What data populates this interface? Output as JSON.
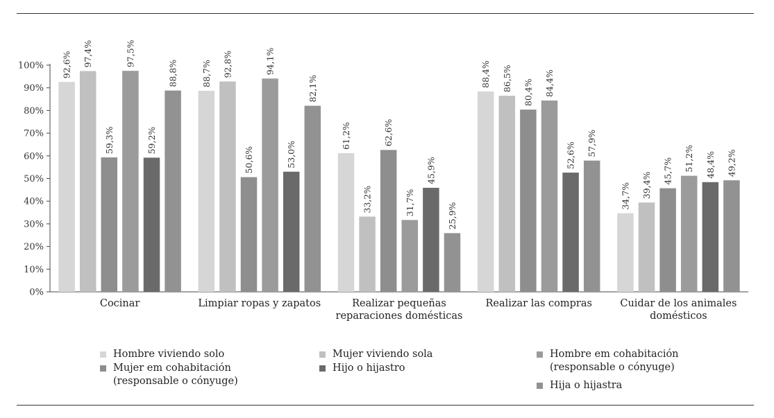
{
  "chart_data": {
    "type": "bar",
    "categories": [
      "Cocinar",
      "Limpiar ropas y zapatos",
      "Realizar pequeñas\nreparaciones domésticas",
      "Realizar las compras",
      "Cuidar de los animales\ndomésticos"
    ],
    "series": [
      {
        "name": "Hombre viviendo solo",
        "color": "#d6d6d6",
        "values": [
          92.6,
          88.7,
          61.2,
          88.4,
          34.7
        ],
        "labels": [
          "92,6%",
          "88,7%",
          "61,2%",
          "88,4%",
          "34,7%"
        ]
      },
      {
        "name": "Mujer viviendo sola",
        "color": "#c0c0c0",
        "values": [
          97.4,
          92.8,
          33.2,
          86.5,
          39.4
        ],
        "labels": [
          "97,4%",
          "92,8%",
          "33,2%",
          "86,5%",
          "39,4%"
        ]
      },
      {
        "name": "Mujer em cohabitación\n(responsable o cónyuge)",
        "color": "#8e8e8e",
        "values": [
          59.3,
          50.6,
          62.6,
          80.4,
          45.7
        ],
        "labels": [
          "59,3%",
          "50,6%",
          "62,6%",
          "80,4%",
          "45,7%"
        ]
      },
      {
        "name": "Hombre em cohabitación\n(responsable o cónyuge)",
        "color": "#9b9b9b",
        "values": [
          97.5,
          94.1,
          31.7,
          84.4,
          51.2
        ],
        "labels": [
          "97,5%",
          "94,1%",
          "31,7%",
          "84,4%",
          "51,2%"
        ]
      },
      {
        "name": "Hijo o hijastro",
        "color": "#6a6a6a",
        "values": [
          59.2,
          53.0,
          45.9,
          52.6,
          48.4
        ],
        "labels": [
          "59,2%",
          "53,0%",
          "45,9%",
          "52,6%",
          "48,4%"
        ]
      },
      {
        "name": "Hija o hijastra",
        "color": "#929292",
        "values": [
          88.8,
          82.1,
          25.9,
          57.9,
          49.2
        ],
        "labels": [
          "88,8%",
          "82,1%",
          "25,9%",
          "57,9%",
          "49,2%"
        ]
      }
    ],
    "y_ticks": [
      "0%",
      "10%",
      "20%",
      "30%",
      "40%",
      "50%",
      "60%",
      "70%",
      "80%",
      "90%",
      "100%"
    ],
    "ylim": [
      0,
      100
    ],
    "grid": false,
    "legend": "bottom"
  },
  "legend": {
    "items": [
      {
        "label": "Hombre viviendo solo",
        "color": "#d6d6d6"
      },
      {
        "label": "Mujer viviendo sola",
        "color": "#c0c0c0"
      },
      {
        "label": "Hombre em cohabitación\n(responsable o cónyuge)",
        "color": "#9b9b9b"
      },
      {
        "label": "Mujer em cohabitación\n(responsable o cónyuge)",
        "color": "#8e8e8e"
      },
      {
        "label": "Hijo o hijastro",
        "color": "#6a6a6a"
      },
      {
        "label": "Hija o hijastra",
        "color": "#929292"
      }
    ]
  }
}
